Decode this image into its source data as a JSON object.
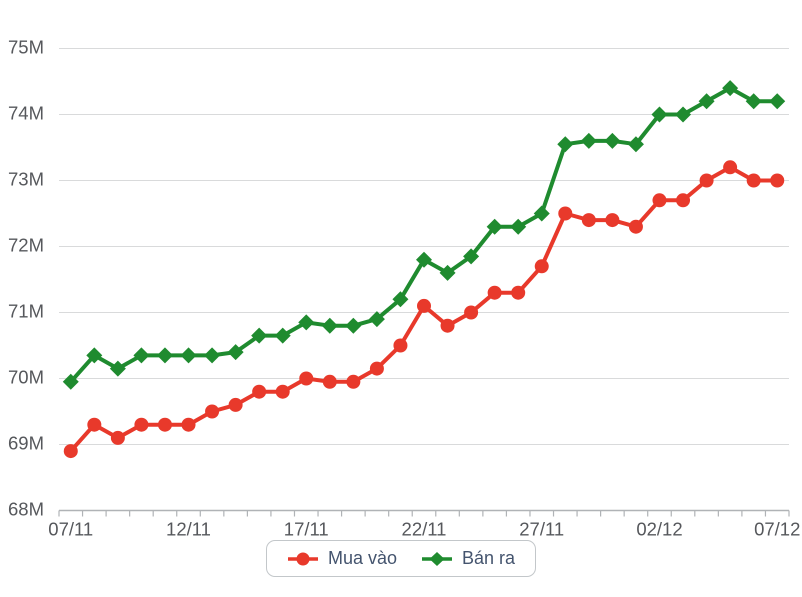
{
  "chart_data": {
    "type": "line",
    "title": "",
    "x": [
      "07/11",
      "08/11",
      "09/11",
      "10/11",
      "11/11",
      "12/11",
      "13/11",
      "14/11",
      "15/11",
      "16/11",
      "17/11",
      "18/11",
      "19/11",
      "20/11",
      "21/11",
      "22/11",
      "23/11",
      "24/11",
      "25/11",
      "26/11",
      "27/11",
      "28/11",
      "29/11",
      "30/11",
      "01/12",
      "02/12",
      "03/12",
      "04/12",
      "05/12",
      "06/12",
      "07/12"
    ],
    "x_tick_labels": [
      "07/11",
      "12/11",
      "17/11",
      "22/11",
      "27/11",
      "02/12",
      "07/12"
    ],
    "x_tick_indices": [
      0,
      5,
      10,
      15,
      20,
      25,
      30
    ],
    "y_tick_labels": [
      "75M",
      "74M",
      "73M",
      "72M",
      "71M",
      "70M",
      "69M",
      "68M"
    ],
    "ylim": [
      68,
      75
    ],
    "y_unit": "M",
    "grid": "horizontal",
    "legend_position": "bottom-center",
    "series": [
      {
        "name": "Mua vào",
        "color": "#e8392b",
        "marker": "circle",
        "values": [
          68.9,
          69.3,
          69.1,
          69.3,
          69.3,
          69.3,
          69.5,
          69.6,
          69.8,
          69.8,
          70.0,
          69.95,
          69.95,
          70.15,
          70.5,
          71.1,
          70.8,
          71.0,
          71.3,
          71.3,
          71.7,
          72.5,
          72.4,
          72.4,
          72.3,
          72.7,
          72.7,
          73.0,
          73.2,
          73.0,
          73.0
        ]
      },
      {
        "name": "Bán ra",
        "color": "#1f8b2f",
        "marker": "diamond",
        "values": [
          69.95,
          70.35,
          70.15,
          70.35,
          70.35,
          70.35,
          70.35,
          70.4,
          70.65,
          70.65,
          70.85,
          70.8,
          70.8,
          70.9,
          71.2,
          71.8,
          71.6,
          71.85,
          72.3,
          72.3,
          72.5,
          73.55,
          73.6,
          73.6,
          73.55,
          74.0,
          74.0,
          74.2,
          74.4,
          74.2,
          74.2
        ]
      }
    ]
  },
  "style": {
    "grid_color": "#d9dadb",
    "axis_color": "#b0b3b6",
    "axis_text_color": "#56585c",
    "legend_text_color": "#44546e"
  }
}
